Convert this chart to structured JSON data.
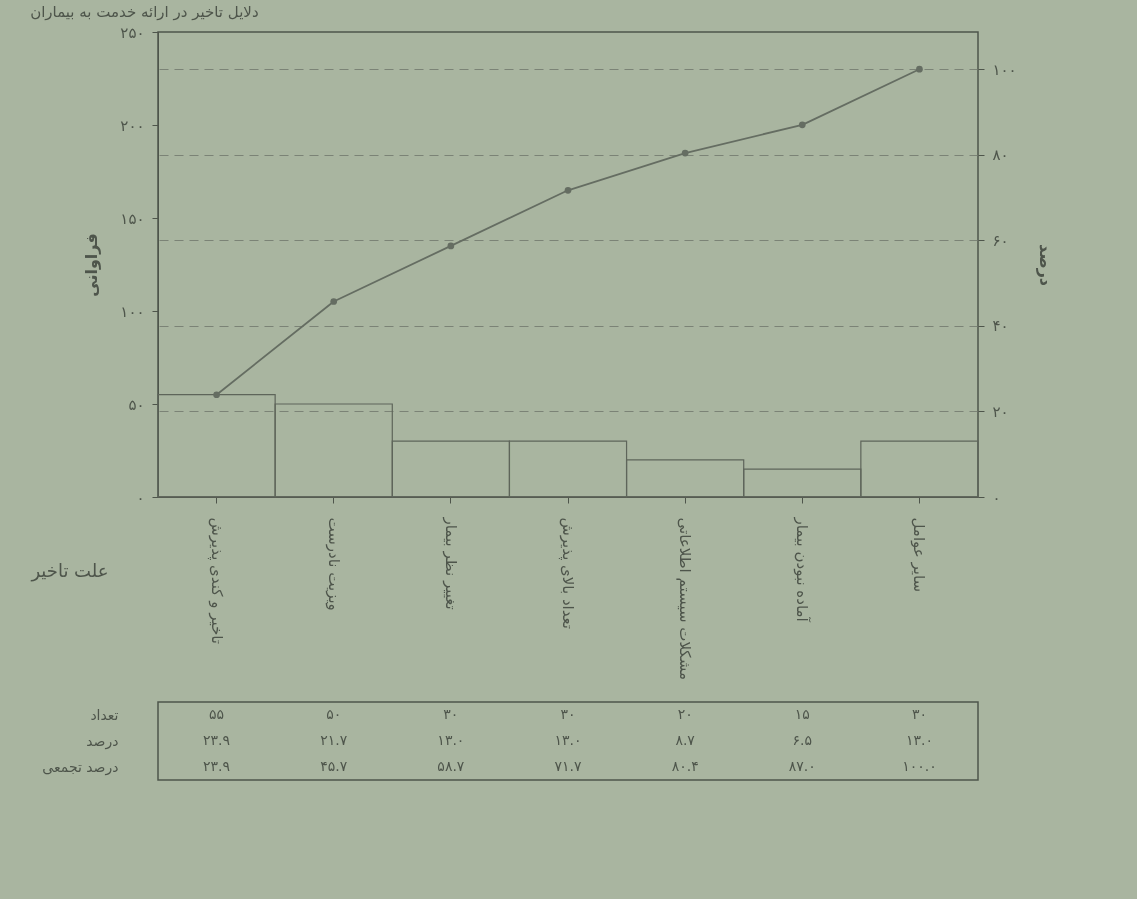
{
  "chart_data": {
    "type": "bar",
    "title": "دلایل تاخیر در ارائه خدمت به بیماران",
    "xlabel": "علت تاخیر",
    "ylabel": "فراوانی",
    "y2label": "درصد",
    "categories": [
      "تاخیر و کندی پذیرش",
      "ویزیت نادرست",
      "تغییر نظر بیمار",
      "تعداد بالای پذیرش",
      "مشکلات سیستم اطلاعاتی",
      "آماده نبودن بیمار",
      "سایر عوامل"
    ],
    "series": [
      {
        "color": "#5e655a",
        "values": [
          55,
          50,
          30,
          30,
          20,
          15,
          30
        ],
        "value_labels": [
          "۵۵",
          "۵۰",
          "۳۰",
          "۳۰",
          "۲۰",
          "۱۵",
          "۳۰"
        ]
      },
      {
        "type": "line",
        "axis": "y2",
        "color": "#656d62",
        "values": [
          23.9,
          45.7,
          58.7,
          71.7,
          80.4,
          87.0,
          100.0
        ],
        "value_labels": [
          "۲۳.۹",
          "۴۵.۷",
          "۵۸.۷",
          "۷۱.۷",
          "۸۰.۴",
          "۸۷.۰",
          "۱۰۰.۰"
        ]
      }
    ],
    "annotations": [
      "تعداد",
      "درصد",
      "درصد تجمعی",
      "۲۳.۹",
      "۲۱.۷",
      "۱۳.۰",
      "۱۳.۰",
      "۸.۷",
      "۶.۵",
      "۱۳.۰"
    ],
    "ylim": [
      0,
      250
    ],
    "yticks": [
      {
        "value": 0,
        "label": "۰"
      },
      {
        "value": 50,
        "label": "۵۰"
      },
      {
        "value": 100,
        "label": "۱۰۰"
      },
      {
        "value": 150,
        "label": "۱۵۰"
      },
      {
        "value": 200,
        "label": "۲۰۰"
      },
      {
        "value": 250,
        "label": "۲۵۰"
      }
    ],
    "y2lim": [
      0,
      108.7
    ],
    "y2ticks": [
      {
        "value": 0,
        "label": "۰"
      },
      {
        "value": 20,
        "label": "۲۰"
      },
      {
        "value": 40,
        "label": "۴۰"
      },
      {
        "value": 60,
        "label": "۶۰"
      },
      {
        "value": 80,
        "label": "۸۰"
      },
      {
        "value": 100,
        "label": "۱۰۰"
      }
    ],
    "grid": "y",
    "marker": "circle",
    "line_style": "solid"
  }
}
